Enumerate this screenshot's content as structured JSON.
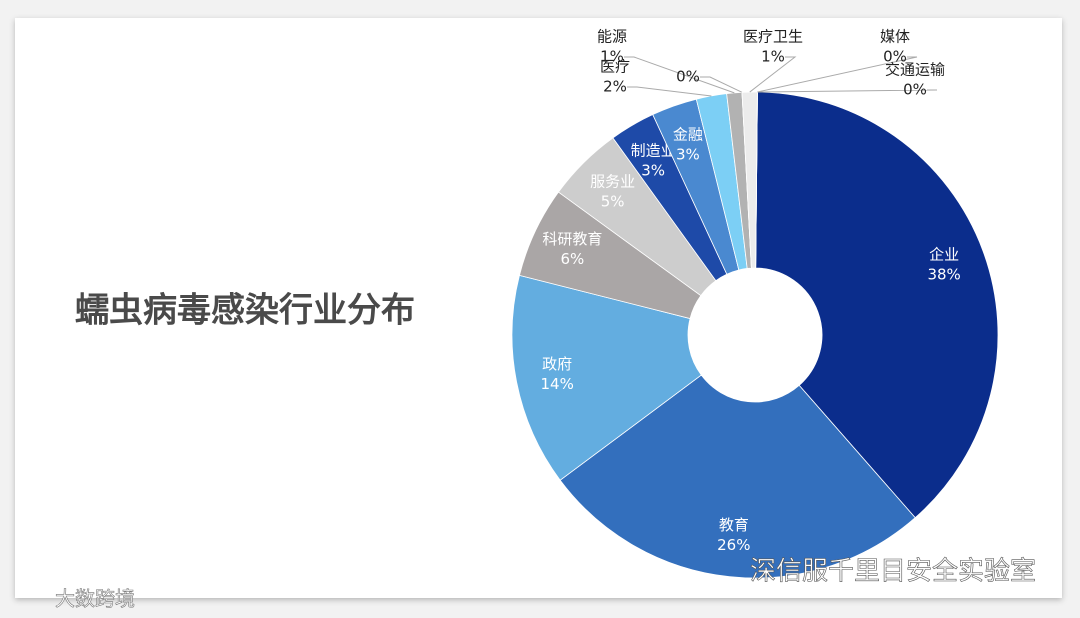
{
  "chart_data": {
    "type": "donut",
    "title": "蠕虫病毒感染行业分布",
    "categories": [
      "企业",
      "教育",
      "政府",
      "科研教育",
      "服务业",
      "制造业",
      "金融",
      "医疗",
      "能源",
      null,
      "医疗卫生",
      "媒体",
      "交通运输"
    ],
    "values": [
      38,
      26,
      14,
      6,
      5,
      3,
      3,
      2,
      1,
      0,
      1,
      0,
      0
    ],
    "value_labels": [
      "38%",
      "26%",
      "14%",
      "6%",
      "5%",
      "3%",
      "3%",
      "2%",
      "1%",
      "0%",
      "1%",
      "0%",
      "0%"
    ],
    "colors": [
      "#0b2d8c",
      "#336fbd",
      "#63ade0",
      "#aaa6a6",
      "#cdcdcd",
      "#1e4aa8",
      "#4a89d0",
      "#7ccff5",
      "#b2b2b2",
      "#d8d8d8",
      "#ececec",
      "#1f3864",
      "#44546a"
    ],
    "watermarks": [
      "深信服千里目安全实验室",
      "大数跨境"
    ]
  }
}
